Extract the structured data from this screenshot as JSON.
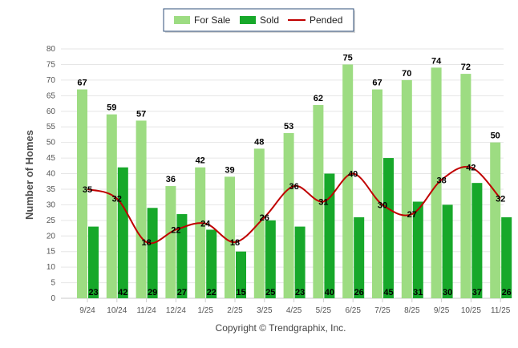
{
  "chart_data": {
    "type": "bar",
    "title": "",
    "xlabel": "",
    "ylabel": "Number of Homes",
    "ylim": [
      0,
      80
    ],
    "yticks": [
      0,
      5,
      10,
      15,
      20,
      25,
      30,
      35,
      40,
      45,
      50,
      55,
      60,
      65,
      70,
      75,
      80
    ],
    "grid": true,
    "legend_position": "top",
    "categories": [
      "9/24",
      "10/24",
      "11/24",
      "12/24",
      "1/25",
      "2/25",
      "3/25",
      "4/25",
      "5/25",
      "6/25",
      "7/25",
      "8/25",
      "9/25",
      "10/25",
      "11/25"
    ],
    "series": [
      {
        "name": "For Sale",
        "type": "bar",
        "color": "#9ddc82",
        "values": [
          67,
          59,
          57,
          36,
          42,
          39,
          48,
          53,
          62,
          75,
          67,
          70,
          74,
          72,
          50
        ]
      },
      {
        "name": "Sold",
        "type": "bar",
        "color": "#17a82a",
        "values": [
          23,
          42,
          29,
          27,
          22,
          15,
          25,
          23,
          40,
          26,
          45,
          31,
          30,
          37,
          26
        ]
      },
      {
        "name": "Pended",
        "type": "line",
        "color": "#c00000",
        "values": [
          35,
          32,
          18,
          22,
          24,
          18,
          26,
          36,
          31,
          40,
          30,
          27,
          38,
          42,
          32
        ]
      }
    ]
  },
  "footer": {
    "copyright": "Copyright © Trendgraphix, Inc."
  }
}
